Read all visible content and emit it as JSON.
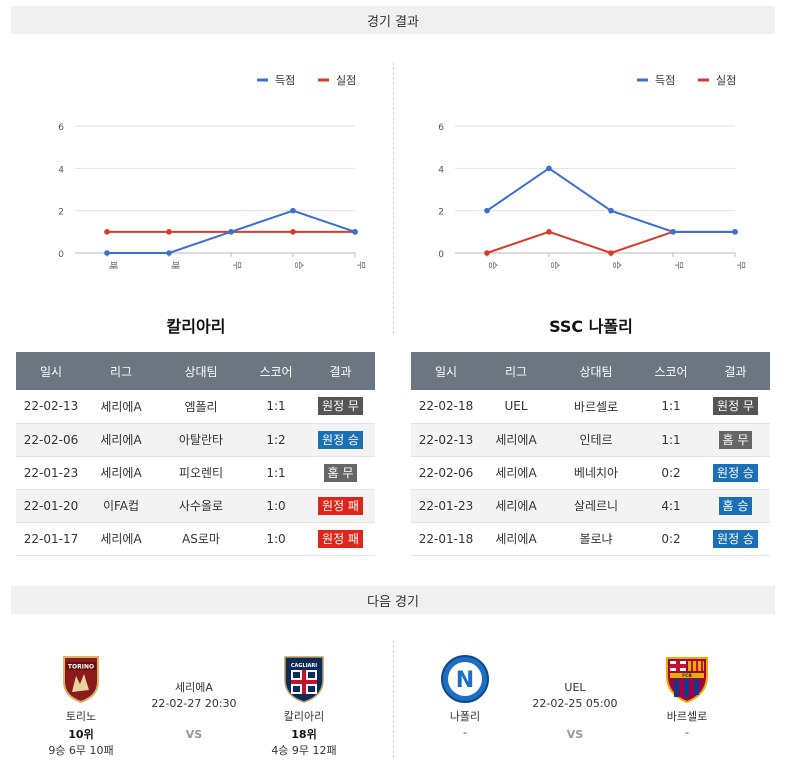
{
  "sections": {
    "results_title": "경기 결과",
    "next_title": "다음 경기"
  },
  "legend": {
    "scored": "득점",
    "conceded": "실점"
  },
  "colors": {
    "scored": "#3b6fd0",
    "conceded": "#d93a2a",
    "win": "#1a6fb5",
    "loss": "#e0261b",
    "draw": "#555555"
  },
  "chart_data": [
    {
      "type": "line",
      "categories": [
        "패",
        "패",
        "무",
        "승",
        "무"
      ],
      "series": [
        {
          "name": "득점",
          "values": [
            0,
            0,
            1,
            2,
            1
          ]
        },
        {
          "name": "실점",
          "values": [
            1,
            1,
            1,
            1,
            1
          ]
        }
      ],
      "yticks": [
        0,
        2,
        4,
        6
      ],
      "ylim": [
        0,
        6
      ],
      "grid": true,
      "legend": "top-right"
    },
    {
      "type": "line",
      "categories": [
        "승",
        "승",
        "승",
        "무",
        "무"
      ],
      "series": [
        {
          "name": "득점",
          "values": [
            2,
            4,
            2,
            1,
            1
          ]
        },
        {
          "name": "실점",
          "values": [
            0,
            1,
            0,
            1,
            1
          ]
        }
      ],
      "yticks": [
        0,
        2,
        4,
        6
      ],
      "ylim": [
        0,
        6
      ],
      "grid": true,
      "legend": "top-right"
    }
  ],
  "teams": {
    "left": {
      "name": "칼리아리",
      "headers": [
        "일시",
        "리그",
        "상대팀",
        "스코어",
        "결과"
      ],
      "rows": [
        {
          "date": "22-02-13",
          "league": "세리에A",
          "opponent": "엠폴리",
          "score": "1:1",
          "result": "원정 무",
          "kind": "away-draw"
        },
        {
          "date": "22-02-06",
          "league": "세리에A",
          "opponent": "아탈란타",
          "score": "1:2",
          "result": "원정 승",
          "kind": "win"
        },
        {
          "date": "22-01-23",
          "league": "세리에A",
          "opponent": "피오렌티",
          "score": "1:1",
          "result": "홈 무",
          "kind": "home-draw"
        },
        {
          "date": "22-01-20",
          "league": "이FA컵",
          "opponent": "사수올로",
          "score": "1:0",
          "result": "원정 패",
          "kind": "loss"
        },
        {
          "date": "22-01-17",
          "league": "세리에A",
          "opponent": "AS로마",
          "score": "1:0",
          "result": "원정 패",
          "kind": "loss"
        }
      ]
    },
    "right": {
      "name": "SSC 나폴리",
      "headers": [
        "일시",
        "리그",
        "상대팀",
        "스코어",
        "결과"
      ],
      "rows": [
        {
          "date": "22-02-18",
          "league": "UEL",
          "opponent": "바르셀로",
          "score": "1:1",
          "result": "원정 무",
          "kind": "away-draw"
        },
        {
          "date": "22-02-13",
          "league": "세리에A",
          "opponent": "인테르",
          "score": "1:1",
          "result": "홈 무",
          "kind": "home-draw"
        },
        {
          "date": "22-02-06",
          "league": "세리에A",
          "opponent": "베네치아",
          "score": "0:2",
          "result": "원정 승",
          "kind": "win"
        },
        {
          "date": "22-01-23",
          "league": "세리에A",
          "opponent": "살레르니",
          "score": "4:1",
          "result": "홈 승",
          "kind": "win"
        },
        {
          "date": "22-01-18",
          "league": "세리에A",
          "opponent": "볼로냐",
          "score": "0:2",
          "result": "원정 승",
          "kind": "win"
        }
      ]
    }
  },
  "next": {
    "left": {
      "home": {
        "name": "토리노",
        "rank": "10위",
        "record": "9승 6무 10패",
        "logo_text": "TORINO"
      },
      "away": {
        "name": "칼리아리",
        "rank": "18위",
        "record": "4승 9무 12패",
        "logo_text": "CAGLIARI"
      },
      "league": "세리에A",
      "datetime": "22-02-27 20:30",
      "vs": "VS"
    },
    "right": {
      "home": {
        "name": "나폴리",
        "rank": "",
        "record": "-",
        "logo_text": "N"
      },
      "away": {
        "name": "바르셀로",
        "rank": "",
        "record": "-",
        "logo_text": "FCB"
      },
      "league": "UEL",
      "datetime": "22-02-25 05:00",
      "vs": "VS"
    }
  }
}
